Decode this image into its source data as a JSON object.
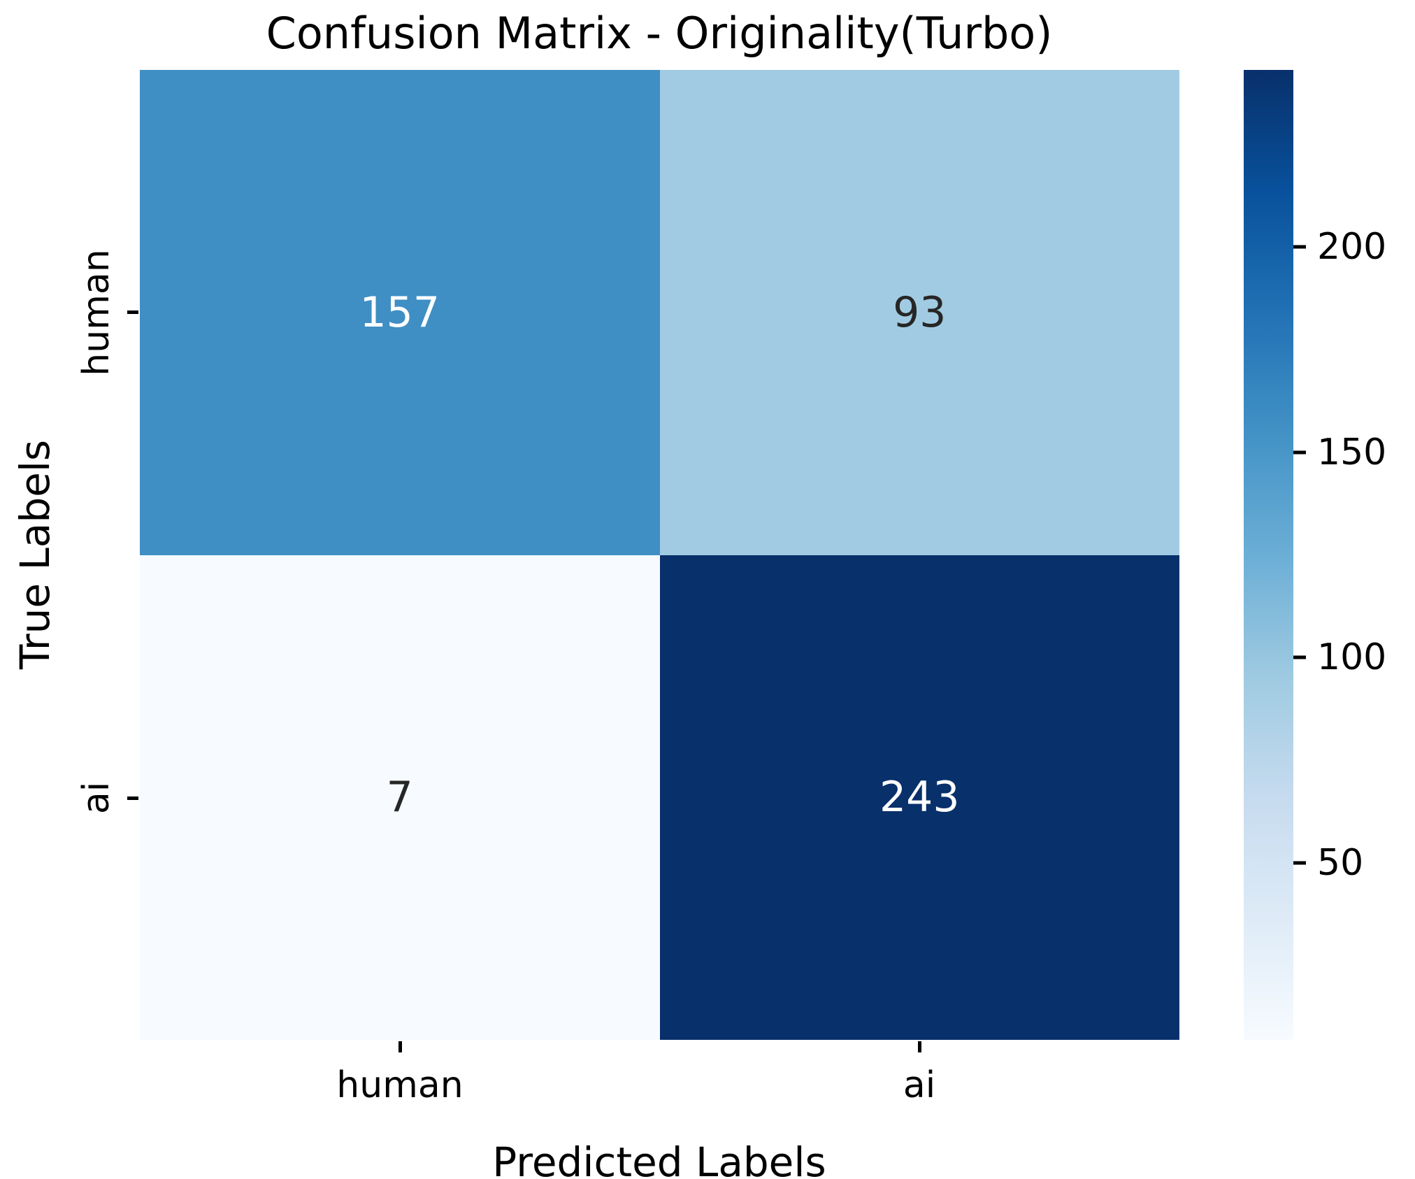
{
  "chart_data": {
    "type": "heatmap",
    "title": "Confusion Matrix - Originality(Turbo)",
    "xlabel": "Predicted Labels",
    "ylabel": "True Labels",
    "x_categories": [
      "human",
      "ai"
    ],
    "y_categories": [
      "human",
      "ai"
    ],
    "matrix": [
      [
        157,
        93
      ],
      [
        7,
        243
      ]
    ],
    "colormap": "Blues",
    "vmin": 7,
    "vmax": 243,
    "colorbar_ticks": [
      50,
      100,
      150,
      200
    ],
    "colorbar_gradient_bottom_to_top": [
      "#F7FBFF",
      "#DEEBF7",
      "#C6DBEF",
      "#9ECAE1",
      "#6BAED6",
      "#4292C6",
      "#2171B5",
      "#08519C",
      "#08306B"
    ],
    "cell_colors": [
      [
        "#3F8FC4",
        "#A1CBE2"
      ],
      [
        "#F7FBFF",
        "#08306B"
      ]
    ],
    "cell_text_colors": [
      [
        "#FFFFFF",
        "#262626"
      ],
      [
        "#262626",
        "#FFFFFF"
      ]
    ],
    "background_color": "#FFFFFF",
    "legend_position": "right-colorbar",
    "grid": false
  }
}
